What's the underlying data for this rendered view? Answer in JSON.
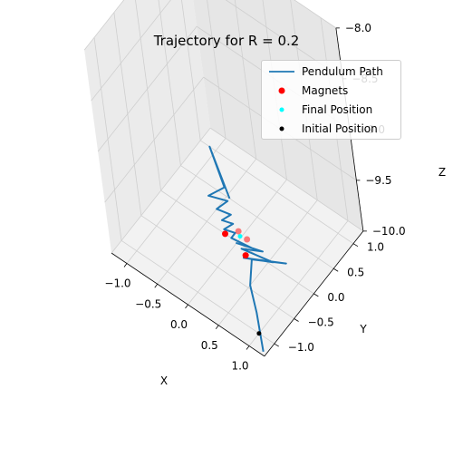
{
  "chart_data": {
    "type": "line",
    "title": "Trajectory for R = 0.2",
    "xlabel": "X",
    "ylabel": "Y",
    "zlabel": "Z",
    "x_ticks": [
      "−1.0",
      "−0.5",
      "0.0",
      "0.5",
      "1.0"
    ],
    "y_ticks": [
      "−1.0",
      "−0.5",
      "0.0",
      "0.5",
      "1.0"
    ],
    "z_ticks": [
      "−10.0",
      "−9.5",
      "−9.0",
      "−8.5",
      "−8.0"
    ],
    "xlim": [
      -1.25,
      1.25
    ],
    "ylim": [
      -1.25,
      1.25
    ],
    "zlim": [
      -10.0,
      -8.0
    ],
    "grid": true,
    "legend_position": "top-right",
    "legend": [
      "Pendulum Path",
      "Magnets",
      "Final Position",
      "Initial Position"
    ],
    "colors": {
      "path": "#1f77b4",
      "magnets": "#ff0000",
      "final": "#00ffff",
      "initial": "#000000"
    },
    "series": [
      {
        "name": "Pendulum Path",
        "x": [
          1.2,
          0.8,
          0.5,
          0.3,
          0.7,
          0.2,
          0.55,
          0.1,
          0.35,
          0.0,
          0.2,
          -0.1,
          -0.1,
          -0.25,
          -0.2,
          -0.35,
          -0.3,
          -0.5,
          -0.45,
          -0.7,
          -0.6,
          -1.1,
          -0.45
        ],
        "y": [
          -1.2,
          -0.75,
          -0.45,
          -0.1,
          0.15,
          -0.15,
          0.05,
          -0.05,
          0.1,
          -0.02,
          0.05,
          0.0,
          0.1,
          0.05,
          0.2,
          0.15,
          0.3,
          0.25,
          0.45,
          0.35,
          0.6,
          1.0,
          0.5
        ],
        "z": [
          -10,
          -10,
          -10,
          -10,
          -10,
          -10,
          -10,
          -10,
          -10,
          -10,
          -10,
          -10,
          -10,
          -10,
          -10,
          -10,
          -10,
          -10,
          -10,
          -10,
          -10,
          -10,
          -10
        ]
      },
      {
        "name": "Magnets",
        "x": [
          0.2,
          -0.2,
          -0.08,
          0.08
        ],
        "y": [
          -0.1,
          0.0,
          0.15,
          0.12
        ],
        "z": [
          -10,
          -10,
          -10,
          -10
        ]
      },
      {
        "name": "Final Position",
        "x": [
          -0.02
        ],
        "y": [
          0.1
        ],
        "z": [
          -10
        ]
      },
      {
        "name": "Initial Position",
        "x": [
          1.0
        ],
        "y": [
          -1.0
        ],
        "z": [
          -10
        ]
      }
    ]
  }
}
